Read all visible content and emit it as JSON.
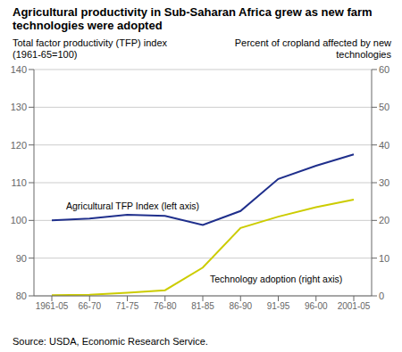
{
  "chart_data": {
    "type": "line",
    "title": "Agricultural productivity in Sub-Saharan Africa grew as new farm technologies were adopted",
    "ylabel": "Total factor productivity (TFP) index (1961-65=100)",
    "y2label": "Percent of cropland affected by new technologies",
    "annotations": [
      "Source: USDA, Economic Research Service."
    ],
    "categories": [
      "1961-05",
      "66-70",
      "71-75",
      "76-80",
      "81-85",
      "86-90",
      "91-95",
      "96-00",
      "2001-05"
    ],
    "series": [
      {
        "name": "Agricultural TFP Index (left axis)",
        "color": "#1f2f8c",
        "values": [
          100.0,
          100.5,
          101.5,
          101.2,
          98.8,
          102.5,
          111.0,
          114.5,
          117.5
        ]
      },
      {
        "name": "Technology adoption (right axis)",
        "color": "#cccc00",
        "values": [
          0.2,
          0.3,
          0.8,
          1.5,
          7.5,
          18.0,
          21.0,
          23.5,
          25.5
        ],
        "axis": "y2"
      }
    ],
    "ylim": [
      80,
      140
    ],
    "yticks": [
      80,
      90,
      100,
      110,
      120,
      130,
      140
    ],
    "y2lim": [
      0,
      60
    ],
    "y2ticks": [
      0,
      10,
      20,
      30,
      40,
      50,
      60
    ],
    "grid": true
  }
}
